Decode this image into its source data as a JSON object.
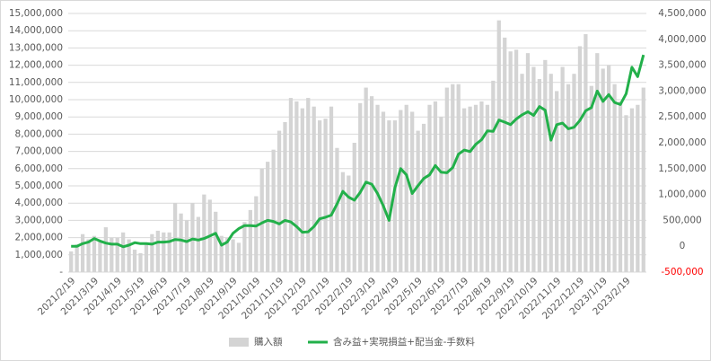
{
  "chart_data": {
    "type": "bar",
    "categories": [
      "2021/2/19",
      null,
      null,
      null,
      "2021/3/19",
      null,
      null,
      null,
      "2021/4/19",
      null,
      null,
      null,
      "2021/5/19",
      null,
      null,
      null,
      "2021/6/19",
      null,
      null,
      null,
      "2021/7/19",
      null,
      null,
      null,
      "2021/8/19",
      null,
      null,
      null,
      "2021/9/19",
      null,
      null,
      null,
      "2021/10/19",
      null,
      null,
      null,
      "2021/11/19",
      null,
      null,
      null,
      "2021/12/19",
      null,
      null,
      null,
      "2022/1/19",
      null,
      null,
      null,
      "2022/2/19",
      null,
      null,
      null,
      "2022/3/19",
      null,
      null,
      null,
      "2022/4/19",
      null,
      null,
      null,
      "2022/5/19",
      null,
      null,
      null,
      "2022/6/19",
      null,
      null,
      null,
      "2022/7/19",
      null,
      null,
      null,
      "2022/8/19",
      null,
      null,
      null,
      "2022/9/19",
      null,
      null,
      null,
      "2022/10/19",
      null,
      null,
      null,
      "2022/11/19",
      null,
      null,
      null,
      "2022/12/19",
      null,
      null,
      null,
      "2023/1/19",
      null,
      null,
      null,
      "2023/2/19",
      null,
      null,
      null
    ],
    "series": [
      {
        "name": "購入額",
        "type": "bar",
        "color": "#d4d4d4",
        "values": [
          1200000,
          1600000,
          2200000,
          1900000,
          2100000,
          1800000,
          2600000,
          2000000,
          2000000,
          2300000,
          1900000,
          1300000,
          1100000,
          1600000,
          2200000,
          2400000,
          2300000,
          2300000,
          4000000,
          3400000,
          3000000,
          4000000,
          3200000,
          4500000,
          4200000,
          3500000,
          2100000,
          2000000,
          1900000,
          1700000,
          2900000,
          3600000,
          4400000,
          6000000,
          6400000,
          7100000,
          8200000,
          8700000,
          10100000,
          9900000,
          9500000,
          10100000,
          9600000,
          8800000,
          8900000,
          9600000,
          7200000,
          5800000,
          5600000,
          7500000,
          9800000,
          10700000,
          10200000,
          9700000,
          9300000,
          8800000,
          8800000,
          9400000,
          9700000,
          9300000,
          8200000,
          8600000,
          9700000,
          9900000,
          9000000,
          10700000,
          10900000,
          10900000,
          9500000,
          9600000,
          9700000,
          9900000,
          9700000,
          11100000,
          14600000,
          13600000,
          12800000,
          12900000,
          11500000,
          12700000,
          11900000,
          11200000,
          12300000,
          11500000,
          10500000,
          11900000,
          10900000,
          11500000,
          13100000,
          13800000,
          10800000,
          12700000,
          11800000,
          12000000,
          10900000,
          9900000,
          9100000,
          9500000,
          9700000,
          10700000
        ]
      },
      {
        "name": "含み益+実現損益+配当金-手数料",
        "type": "line",
        "axis": "y2",
        "color": "#22b04a",
        "values": [
          0,
          0,
          50000,
          80000,
          150000,
          100000,
          60000,
          40000,
          40000,
          -10000,
          20000,
          70000,
          50000,
          50000,
          40000,
          80000,
          80000,
          90000,
          130000,
          120000,
          90000,
          140000,
          120000,
          150000,
          200000,
          250000,
          20000,
          80000,
          250000,
          340000,
          400000,
          400000,
          390000,
          450000,
          500000,
          480000,
          430000,
          500000,
          470000,
          380000,
          270000,
          280000,
          380000,
          530000,
          560000,
          600000,
          820000,
          1060000,
          950000,
          890000,
          1040000,
          1240000,
          1200000,
          1020000,
          780000,
          500000,
          1130000,
          1500000,
          1380000,
          1020000,
          1170000,
          1310000,
          1380000,
          1560000,
          1430000,
          1420000,
          1520000,
          1780000,
          1860000,
          1830000,
          1970000,
          2060000,
          2230000,
          2220000,
          2440000,
          2400000,
          2350000,
          2460000,
          2540000,
          2600000,
          2530000,
          2700000,
          2630000,
          2050000,
          2350000,
          2380000,
          2270000,
          2300000,
          2430000,
          2620000,
          2680000,
          3000000,
          2800000,
          2930000,
          2780000,
          2740000,
          2950000,
          3460000,
          3280000,
          3700000
        ]
      }
    ],
    "ylim": [
      0,
      15000000
    ],
    "yticks": [
      {
        "value": 0,
        "label": "-"
      },
      {
        "value": 1000000,
        "label": "1,000,000"
      },
      {
        "value": 2000000,
        "label": "2,000,000"
      },
      {
        "value": 3000000,
        "label": "3,000,000"
      },
      {
        "value": 4000000,
        "label": "4,000,000"
      },
      {
        "value": 5000000,
        "label": "5,000,000"
      },
      {
        "value": 6000000,
        "label": "6,000,000"
      },
      {
        "value": 7000000,
        "label": "7,000,000"
      },
      {
        "value": 8000000,
        "label": "8,000,000"
      },
      {
        "value": 9000000,
        "label": "9,000,000"
      },
      {
        "value": 10000000,
        "label": "10,000,000"
      },
      {
        "value": 11000000,
        "label": "11,000,000"
      },
      {
        "value": 12000000,
        "label": "12,000,000"
      },
      {
        "value": 13000000,
        "label": "13,000,000"
      },
      {
        "value": 14000000,
        "label": "14,000,000"
      },
      {
        "value": 15000000,
        "label": "15,000,000"
      }
    ],
    "y2lim": [
      -500000,
      4500000
    ],
    "y2ticks": [
      {
        "value": -500000,
        "label": "-500,000"
      },
      0,
      {
        "value": 500000,
        "label": "500,000"
      },
      {
        "value": 1000000,
        "label": "1,000,000"
      },
      {
        "value": 1500000,
        "label": "1,500,000"
      },
      {
        "value": 2000000,
        "label": "2,000,000"
      },
      {
        "value": 2500000,
        "label": "2,500,000"
      },
      {
        "value": 3000000,
        "label": "3,000,000"
      },
      {
        "value": 3500000,
        "label": "3,500,000"
      },
      {
        "value": 4000000,
        "label": "4,000,000"
      },
      {
        "value": 4500000,
        "label": "4,500,000"
      }
    ],
    "negative_tick_color": "#ff0000",
    "grid": true,
    "legend": "bottom"
  }
}
